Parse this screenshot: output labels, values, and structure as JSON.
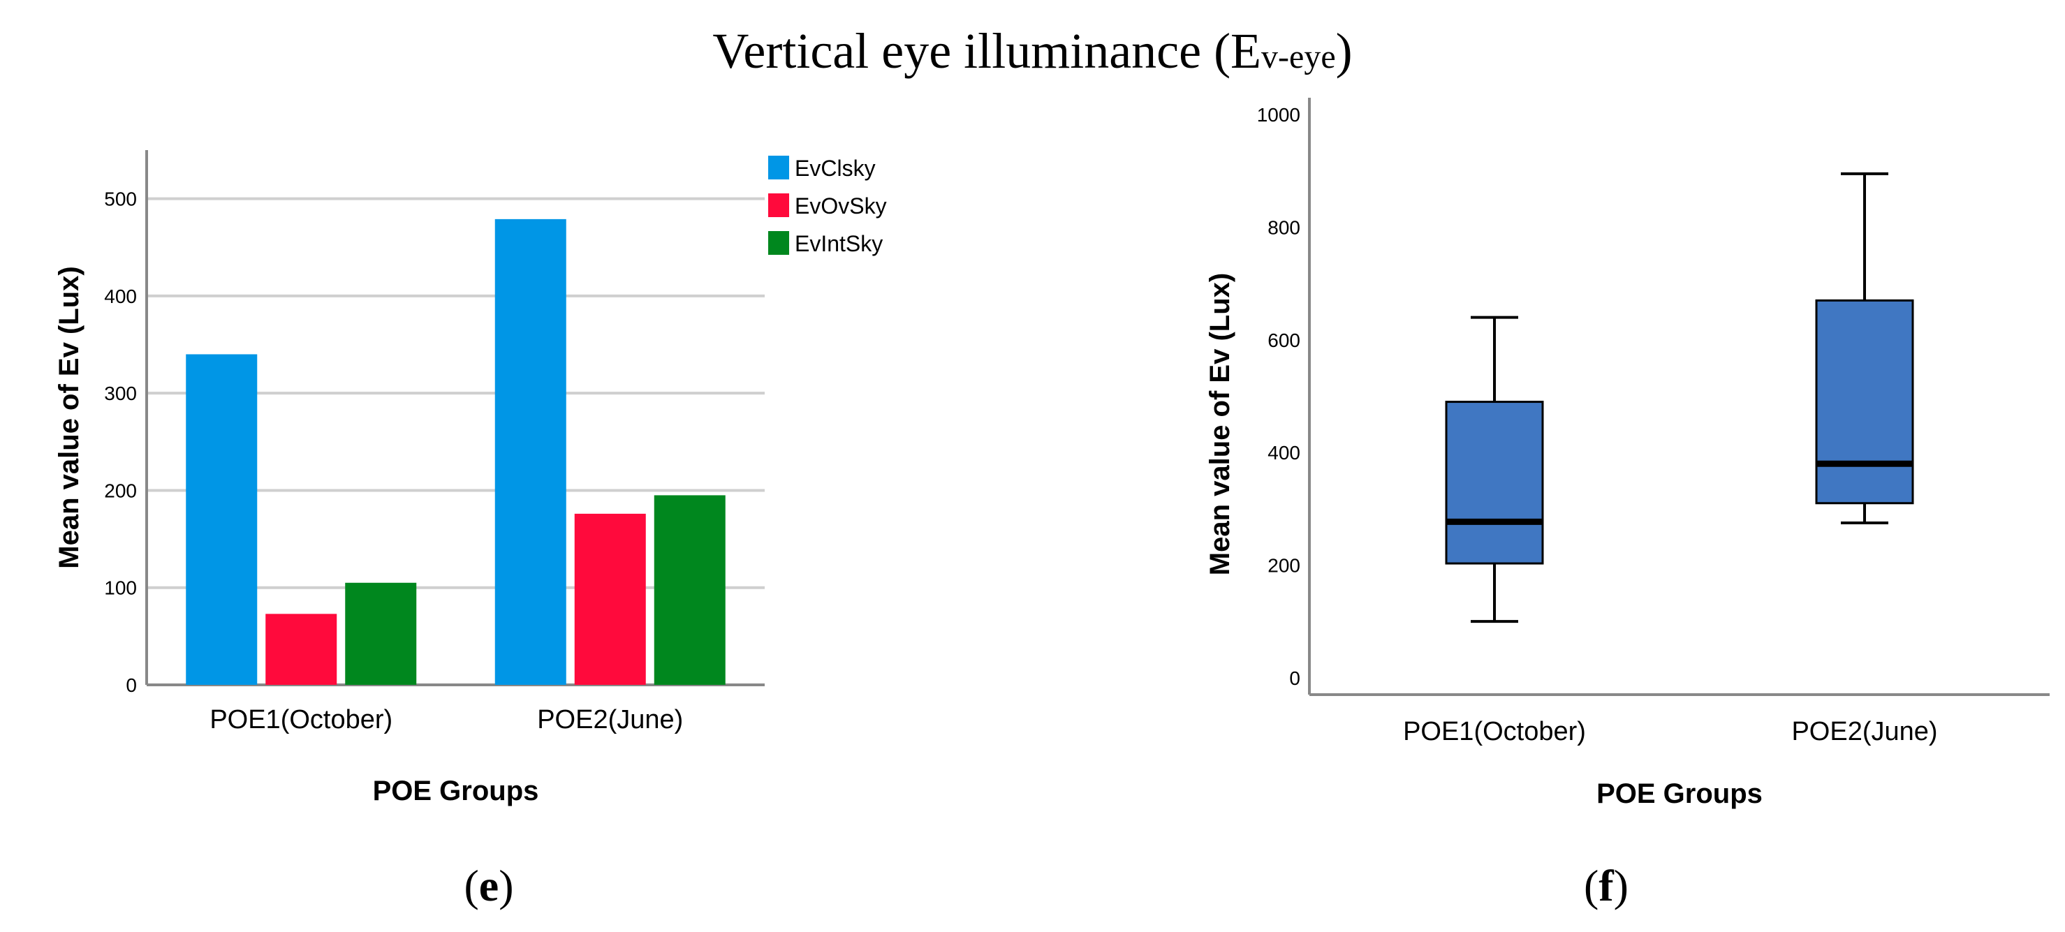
{
  "figure": {
    "title_main": "Vertical eye illuminance (E",
    "title_sub": "v-eye",
    "title_close": ")",
    "panel_e_open": "(",
    "panel_e_letter": "e",
    "panel_e_close": ")",
    "panel_f_open": "(",
    "panel_f_letter": "f",
    "panel_f_close": ")"
  },
  "chart_data": [
    {
      "type": "bar",
      "categories": [
        "POE1(October)",
        "POE2(June)"
      ],
      "series": [
        {
          "name": "EvClsky",
          "values": [
            340,
            479
          ],
          "color": "#0096e6"
        },
        {
          "name": "EvOvSky",
          "values": [
            73,
            176
          ],
          "color": "#ff0a3c"
        },
        {
          "name": "EvIntSky",
          "values": [
            105,
            195
          ],
          "color": "#00871e"
        }
      ],
      "xlabel": "POE Groups",
      "ylabel": "Mean value of Ev (Lux)",
      "ylim": [
        0,
        550
      ],
      "yticks": [
        0,
        100,
        200,
        300,
        400,
        500
      ],
      "grid": true,
      "legend": "top-right"
    },
    {
      "type": "box",
      "categories": [
        "POE1(October)",
        "POE2(June)"
      ],
      "boxes": [
        {
          "min": 100,
          "q1": 203,
          "median": 277,
          "q3": 490,
          "max": 640
        },
        {
          "min": 275,
          "q1": 310,
          "median": 380,
          "q3": 670,
          "max": 895
        }
      ],
      "color": "#4077c2",
      "xlabel": "POE Groups",
      "ylabel": "Mean value of Ev (Lux)",
      "ylim": [
        -30,
        1030
      ],
      "yticks": [
        0,
        200,
        400,
        600,
        800,
        1000
      ],
      "grid": false
    }
  ]
}
